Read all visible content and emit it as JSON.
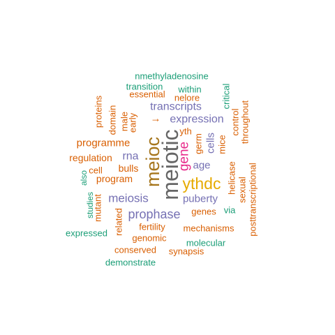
{
  "palette": {
    "orange": "#D95F02",
    "teal": "#1B9E77",
    "purple": "#7570B3",
    "magenta": "#E7298A",
    "gold": "#E6AB02",
    "olive": "#A6761D",
    "gray": "#666666"
  },
  "words": [
    {
      "text": "meiotic",
      "color": "gray",
      "vertical": true
    },
    {
      "text": "meioc",
      "color": "olive",
      "vertical": true
    },
    {
      "text": "ythdc",
      "color": "gold",
      "vertical": false
    },
    {
      "text": "gene",
      "color": "magenta",
      "vertical": true
    },
    {
      "text": "prophase",
      "color": "purple",
      "vertical": false
    },
    {
      "text": "meiosis",
      "color": "purple",
      "vertical": false
    },
    {
      "text": "expression",
      "color": "purple",
      "vertical": false
    },
    {
      "text": "transcripts",
      "color": "purple",
      "vertical": false
    },
    {
      "text": "rna",
      "color": "purple",
      "vertical": false
    },
    {
      "text": "age",
      "color": "purple",
      "vertical": false
    },
    {
      "text": "cells",
      "color": "purple",
      "vertical": true
    },
    {
      "text": "puberty",
      "color": "purple",
      "vertical": false
    },
    {
      "text": "programme",
      "color": "orange",
      "vertical": false
    },
    {
      "text": "program",
      "color": "orange",
      "vertical": false
    },
    {
      "text": "regulation",
      "color": "orange",
      "vertical": false
    },
    {
      "text": "bulls",
      "color": "orange",
      "vertical": false
    },
    {
      "text": "cell",
      "color": "orange",
      "vertical": false
    },
    {
      "text": "genes",
      "color": "orange",
      "vertical": false
    },
    {
      "text": "mechanisms",
      "color": "orange",
      "vertical": false
    },
    {
      "text": "fertility",
      "color": "orange",
      "vertical": false
    },
    {
      "text": "genomic",
      "color": "orange",
      "vertical": false
    },
    {
      "text": "conserved",
      "color": "orange",
      "vertical": false
    },
    {
      "text": "synapsis",
      "color": "orange",
      "vertical": false
    },
    {
      "text": "essential",
      "color": "orange",
      "vertical": false
    },
    {
      "text": "nelore",
      "color": "orange",
      "vertical": false
    },
    {
      "text": "yth",
      "color": "orange",
      "vertical": false
    },
    {
      "text": "proteins",
      "color": "orange",
      "vertical": true
    },
    {
      "text": "domain",
      "color": "orange",
      "vertical": true
    },
    {
      "text": "male",
      "color": "orange",
      "vertical": true
    },
    {
      "text": "early",
      "color": "orange",
      "vertical": true
    },
    {
      "text": "germ",
      "color": "orange",
      "vertical": true
    },
    {
      "text": "mice",
      "color": "orange",
      "vertical": true
    },
    {
      "text": "control",
      "color": "orange",
      "vertical": true
    },
    {
      "text": "throughout",
      "color": "orange",
      "vertical": true
    },
    {
      "text": "helicase",
      "color": "orange",
      "vertical": true
    },
    {
      "text": "sexual",
      "color": "orange",
      "vertical": true
    },
    {
      "text": "posttranscriptional",
      "color": "orange",
      "vertical": true
    },
    {
      "text": "mutant",
      "color": "orange",
      "vertical": true
    },
    {
      "text": "related",
      "color": "orange",
      "vertical": true
    },
    {
      "text": "nmethyladenosine",
      "color": "teal",
      "vertical": false
    },
    {
      "text": "transition",
      "color": "teal",
      "vertical": false
    },
    {
      "text": "within",
      "color": "teal",
      "vertical": false
    },
    {
      "text": "critical",
      "color": "teal",
      "vertical": true
    },
    {
      "text": "also",
      "color": "teal",
      "vertical": true
    },
    {
      "text": "studies",
      "color": "teal",
      "vertical": true
    },
    {
      "text": "expressed",
      "color": "teal",
      "vertical": false
    },
    {
      "text": "via",
      "color": "teal",
      "vertical": false
    },
    {
      "text": "molecular",
      "color": "teal",
      "vertical": false
    },
    {
      "text": "demonstrate",
      "color": "teal",
      "vertical": false
    },
    {
      "text": "→",
      "color": "orange",
      "vertical": false
    }
  ]
}
